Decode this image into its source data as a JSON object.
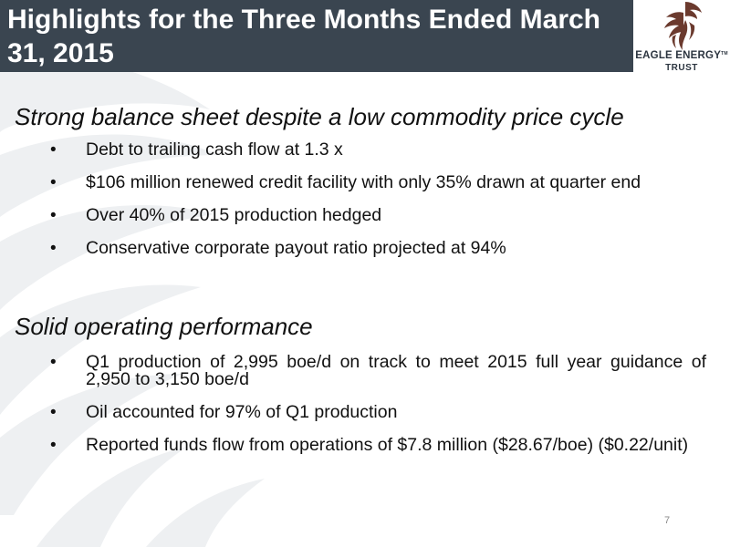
{
  "header": {
    "title": "Highlights for the Three Months Ended March 31, 2015"
  },
  "logo": {
    "name": "EAGLE ENERGY",
    "trademark": "TM",
    "subtitle": "TRUST",
    "icon": "eagle-head-icon"
  },
  "sections": [
    {
      "heading": "Strong balance sheet despite a low commodity price cycle",
      "bullets": [
        "Debt to trailing cash flow at 1.3 x",
        "$106 million renewed credit facility with only 35% drawn at quarter end",
        "Over 40% of 2015 production hedged",
        "Conservative corporate payout ratio projected at 94%"
      ]
    },
    {
      "heading": "Solid operating performance",
      "bullets": [
        "Q1 production of 2,995 boe/d on track to meet 2015 full year guidance of 2,950 to 3,150 boe/d",
        "Oil accounted for 97% of Q1 production",
        "Reported funds flow from operations of $7.8 million ($28.67/boe) ($0.22/unit)"
      ]
    }
  ],
  "bullet_glyph": "•",
  "footer": {
    "page_number": "7"
  },
  "colors": {
    "title_bar": "#3a4550",
    "title_text": "#ffffff",
    "logo_accent": "#6b3a2e",
    "watermark": "#eef0f2"
  }
}
